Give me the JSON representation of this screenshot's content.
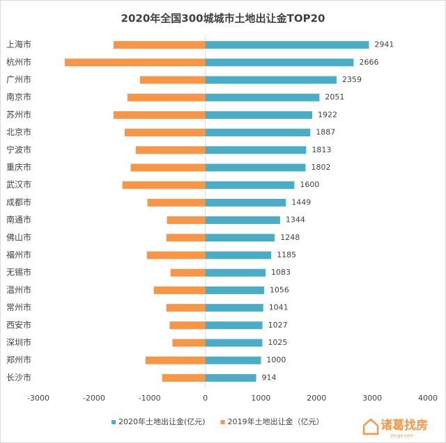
{
  "chart_data": {
    "type": "bar",
    "orientation": "horizontal",
    "title": "2020年全国300城城市土地出让金TOP20",
    "categories": [
      "上海市",
      "杭州市",
      "广州市",
      "南京市",
      "苏州市",
      "北京市",
      "宁波市",
      "重庆市",
      "武汉市",
      "成都市",
      "南通市",
      "佛山市",
      "福州市",
      "无锡市",
      "温州市",
      "常州市",
      "西安市",
      "深圳市",
      "郑州市",
      "长沙市"
    ],
    "series": [
      {
        "name": "2020年土地出让金(亿元)",
        "color": "#4bacc6",
        "values": [
          2941,
          2666,
          2359,
          2051,
          1922,
          1887,
          1813,
          1802,
          1600,
          1449,
          1344,
          1248,
          1185,
          1083,
          1056,
          1041,
          1027,
          1025,
          1000,
          914
        ]
      },
      {
        "name": "2019年土地出让金（亿元）",
        "color": "#f79646",
        "values": [
          -1650,
          -2525,
          -1175,
          -1400,
          -1650,
          -1450,
          -1250,
          -1340,
          -1490,
          -1040,
          -690,
          -700,
          -1050,
          -625,
          -925,
          -700,
          -640,
          -590,
          -1075,
          -775
        ]
      }
    ],
    "xlim": [
      -3000,
      4000
    ],
    "xticks": [
      -3000,
      -2000,
      -1000,
      0,
      1000,
      2000,
      3000,
      4000
    ],
    "legend": "bottom"
  },
  "watermark": {
    "brand": "诸葛找房",
    "site": "zhuge.com"
  }
}
